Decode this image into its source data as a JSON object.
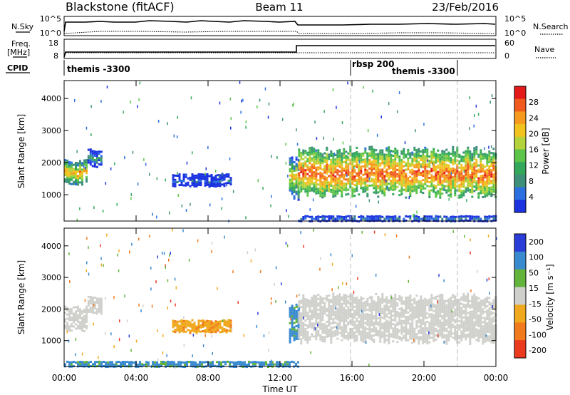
{
  "header": {
    "station": "Blackstone (fitACF)",
    "beam": "Beam 11",
    "date": "23/Feb/2016"
  },
  "noise_panel": {
    "left_label": "N.Sky",
    "right_label": "N.Search",
    "left_ticks": [
      "10^5",
      "10^0"
    ],
    "right_ticks": [
      "10^5",
      "10^0"
    ]
  },
  "freq_panel": {
    "left_label_line1": "Freq.",
    "left_label_line2": "[MHz]",
    "right_label": "Nave",
    "left_ticks": [
      "18",
      "8"
    ],
    "right_ticks": [
      "60",
      "0"
    ]
  },
  "cpid": {
    "label": "CPID",
    "segments": [
      {
        "name": "themis -3300",
        "start": 0
      },
      {
        "name": "rbsp 200",
        "start": 16
      },
      {
        "name": "themis -3300",
        "start": 18.5
      }
    ]
  },
  "colors": {
    "power": [
      "#1a32e0",
      "#2c6fe0",
      "#3d8f7a",
      "#34a85a",
      "#5cc44a",
      "#b4d23a",
      "#f2c21e",
      "#f59a1c",
      "#f05a1e",
      "#e41a1a"
    ],
    "velocity": [
      "#2a3dd8",
      "#3a8ad0",
      "#62b43a",
      "#cfcfcb",
      "#f0a91e",
      "#f07a1c",
      "#ec3a1e"
    ],
    "ground_scatter": "#c8c8c4"
  },
  "chart_data": [
    {
      "type": "heatmap",
      "title": "Power",
      "xlabel": "Time UT",
      "ylabel": "Slant Range [km]",
      "xlim": [
        0,
        24
      ],
      "ylim": [
        180,
        4560
      ],
      "x_ticks": [
        "00:00",
        "04:00",
        "08:00",
        "12:00",
        "16:00",
        "20:00",
        "00:00"
      ],
      "y_ticks": [
        1000,
        2000,
        3000,
        4000
      ],
      "colorbar": {
        "label": "Power [dB]",
        "ticks": [
          "4",
          "8",
          "12",
          "16",
          "20",
          "24",
          "28"
        ],
        "range": [
          0,
          30
        ]
      },
      "regions": [
        {
          "time": [
            0.0,
            1.3
          ],
          "range": [
            1350,
            2050
          ],
          "power_db": 22
        },
        {
          "time": [
            1.3,
            2.1
          ],
          "range": [
            1900,
            2400
          ],
          "power_db": 10
        },
        {
          "time": [
            6.0,
            9.3
          ],
          "range": [
            1250,
            1650
          ],
          "power_db": 5
        },
        {
          "time": [
            12.5,
            13.0
          ],
          "range": [
            950,
            2100
          ],
          "power_db": 20
        },
        {
          "time": [
            13.0,
            24.0
          ],
          "range": [
            1000,
            2400
          ],
          "power_db": 26
        },
        {
          "time": [
            13.0,
            24.0
          ],
          "range": [
            180,
            350
          ],
          "power_db": 8
        }
      ]
    },
    {
      "type": "heatmap",
      "title": "Velocity",
      "xlabel": "Time UT",
      "ylabel": "Slant Range [km]",
      "xlim": [
        0,
        24
      ],
      "ylim": [
        180,
        4560
      ],
      "x_ticks": [
        "00:00",
        "04:00",
        "08:00",
        "12:00",
        "16:00",
        "20:00",
        "00:00"
      ],
      "y_ticks": [
        1000,
        2000,
        3000,
        4000
      ],
      "colorbar": {
        "label": "Velocity [m s⁻¹]",
        "ticks": [
          "200",
          "100",
          "50",
          "15",
          "-15",
          "-50",
          "-100",
          "-200"
        ]
      },
      "regions": [
        {
          "time": [
            0.0,
            1.3
          ],
          "range": [
            1350,
            2050
          ],
          "velocity": 0
        },
        {
          "time": [
            1.3,
            2.1
          ],
          "range": [
            1900,
            2400
          ],
          "velocity": 0
        },
        {
          "time": [
            6.0,
            9.3
          ],
          "range": [
            1250,
            1650
          ],
          "velocity": -40
        },
        {
          "time": [
            12.5,
            13.0
          ],
          "range": [
            950,
            2100
          ],
          "velocity": 60
        },
        {
          "time": [
            13.0,
            24.0
          ],
          "range": [
            1000,
            2400
          ],
          "velocity": 0
        },
        {
          "time": [
            0.0,
            13.0
          ],
          "range": [
            180,
            350
          ],
          "velocity": 60
        }
      ]
    }
  ]
}
